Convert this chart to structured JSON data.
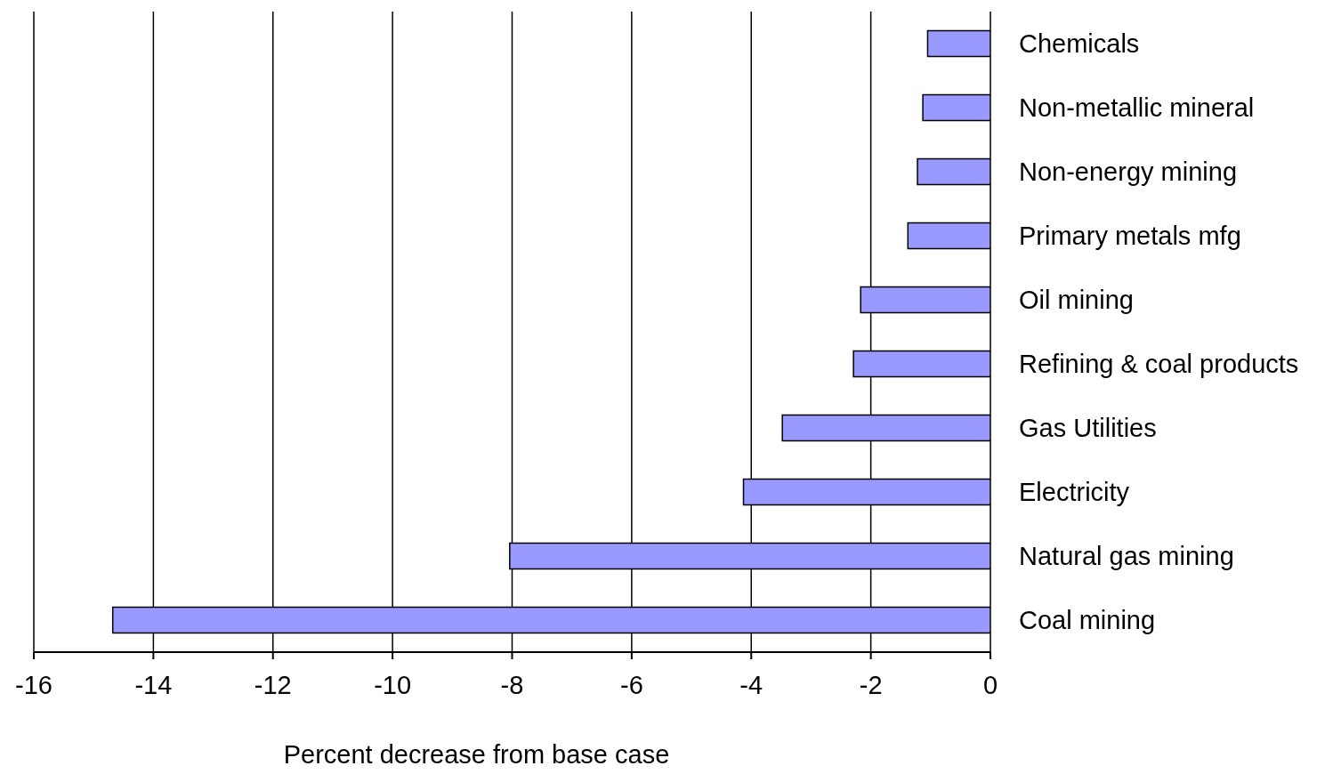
{
  "chart_data": {
    "type": "bar",
    "orientation": "horizontal",
    "xlabel": "Percent decrease from base case",
    "categories": [
      "Chemicals",
      "Non-metallic mineral",
      "Non-energy mining",
      "Primary metals mfg",
      "Oil mining",
      "Refining & coal products",
      "Gas Utilities",
      "Electricity",
      "Natural gas mining",
      "Coal mining"
    ],
    "values": [
      -1.05,
      -1.13,
      -1.22,
      -1.38,
      -2.17,
      -2.29,
      -3.48,
      -4.13,
      -8.04,
      -14.68
    ],
    "color": "#9999ff",
    "xlim": [
      -16,
      0
    ],
    "xticks": [
      -16,
      -14,
      -12,
      -10,
      -8,
      -6,
      -4,
      -2,
      0
    ],
    "grid": "x",
    "legend": false
  }
}
